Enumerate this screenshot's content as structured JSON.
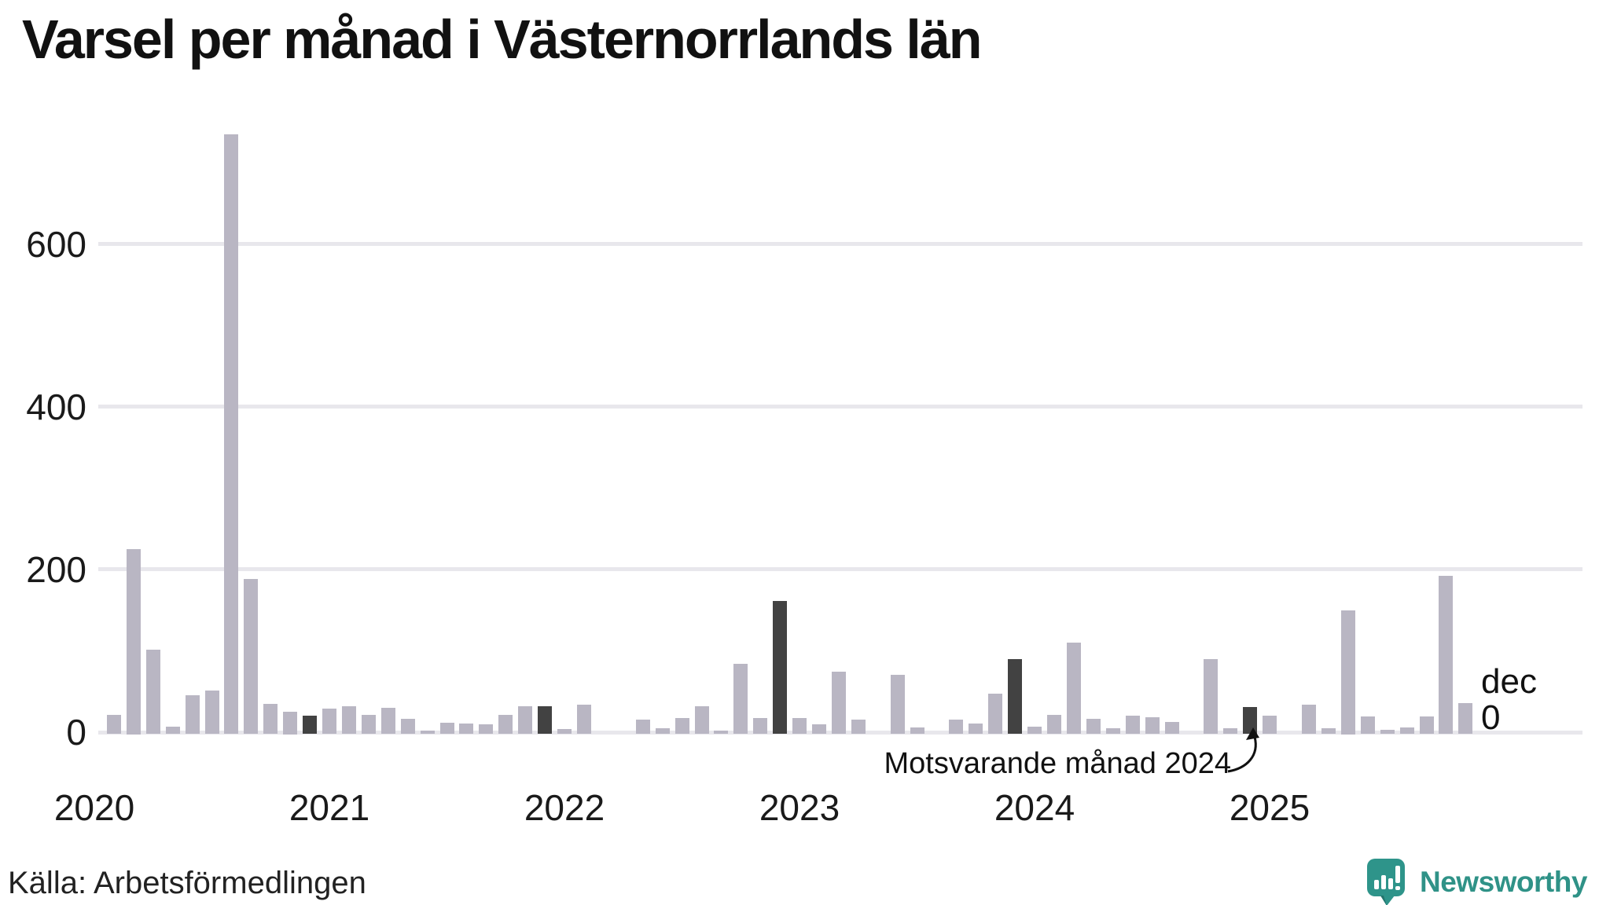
{
  "title": "Varsel per månad i Västernorrlands län",
  "source": "Källa: Arbetsförmedlingen",
  "branding": {
    "name": "Newsworthy"
  },
  "annotation": {
    "text": "Motsvarande månad 2024"
  },
  "last_point_label": {
    "month": "dec",
    "value": "0"
  },
  "y_axis": {
    "ticks": [
      "600",
      "400",
      "200",
      "0"
    ]
  },
  "x_axis": {
    "years": [
      "2020",
      "2021",
      "2022",
      "2023",
      "2024",
      "2025"
    ]
  },
  "colors": {
    "bar": "#b9b6c3",
    "december_highlight": "#424242",
    "gridline": "#e8e7ec",
    "brand_teal": "#2f9287",
    "text": "#111111"
  },
  "chart_data": {
    "type": "bar",
    "title": "Varsel per månad i Västernorrlands län",
    "unit": "varsel (antal)",
    "x_start": "2020-01",
    "x_end": "2025-12",
    "yticks": [
      0,
      200,
      400,
      600
    ],
    "ylim": [
      0,
      760
    ],
    "grid": "horizontal",
    "december_bars_highlighted": true,
    "years": [
      {
        "year": 2020,
        "values": [
          0,
          21,
          225,
          101,
          7,
          45,
          51,
          735,
          188,
          35,
          25,
          20
        ]
      },
      {
        "year": 2021,
        "values": [
          29,
          32,
          21,
          30,
          16,
          2,
          12,
          11,
          10,
          21,
          32,
          32
        ]
      },
      {
        "year": 2022,
        "values": [
          4,
          34,
          0,
          0,
          15,
          5,
          17,
          32,
          2,
          84,
          17,
          161
        ]
      },
      {
        "year": 2023,
        "values": [
          17,
          10,
          74,
          15,
          0,
          71,
          6,
          0,
          15,
          11,
          47,
          90
        ]
      },
      {
        "year": 2024,
        "values": [
          7,
          21,
          110,
          16,
          5,
          20,
          18,
          13,
          0,
          90,
          5,
          31
        ]
      },
      {
        "year": 2025,
        "values": [
          20,
          0,
          34,
          5,
          150,
          19,
          3,
          6,
          19,
          192,
          36,
          0
        ]
      }
    ]
  }
}
